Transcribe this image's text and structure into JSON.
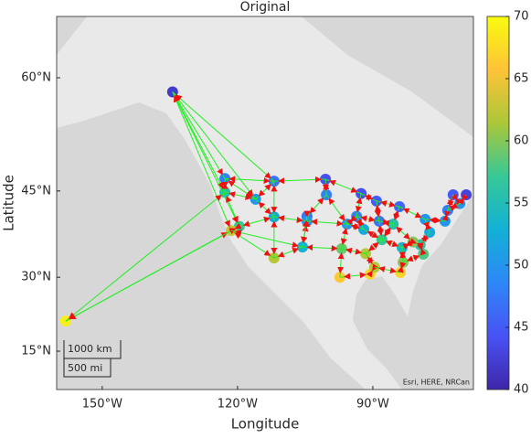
{
  "chart_data": {
    "type": "geograph",
    "title": "Original",
    "x_label": "Longitude",
    "y_label": "Latitude",
    "projection": "mercator",
    "colormap": "parula",
    "xlim": [
      -160.1,
      -67.7
    ],
    "ylim": [
      6.7,
      66.1
    ],
    "xticks": [
      {
        "value": -150,
        "label": "150°W"
      },
      {
        "value": -120,
        "label": "120°W"
      },
      {
        "value": -90,
        "label": "90°W"
      }
    ],
    "yticks": [
      {
        "value": 15,
        "label": "15°N"
      },
      {
        "value": 30,
        "label": "30°N"
      },
      {
        "value": 45,
        "label": "45°N"
      },
      {
        "value": 60,
        "label": "60°N"
      }
    ],
    "clim": [
      40,
      70
    ],
    "cticks": [
      40,
      45,
      50,
      55,
      60,
      65,
      70
    ],
    "edge_color": "#22ee22",
    "arrow_color": "#ee1111",
    "lon": [
      -134.4,
      -158.1,
      -122.8,
      -122.8,
      -116.0,
      -111.9,
      -111.9,
      -111.9,
      -119.6,
      -121.4,
      -100.5,
      -100.3,
      -104.6,
      -104.6,
      -105.6,
      -97.3,
      -96.9,
      -95.7,
      -92.6,
      -93.6,
      -91.6,
      -90.6,
      -89.6,
      -89.2,
      -88.6,
      -88.0,
      -84.1,
      -85.5,
      -83.5,
      -83.9,
      -83.3,
      -78.4,
      -77.4,
      -79.5,
      -78.8,
      -74.0,
      -73.4,
      -72.2,
      -70.7,
      -69.3,
      -81.1,
      -92.0
    ],
    "lat": [
      58.4,
      21.3,
      46.9,
      44.8,
      43.7,
      46.5,
      40.8,
      33.6,
      39.2,
      38.5,
      46.8,
      44.4,
      40.9,
      40.1,
      35.6,
      30.0,
      35.3,
      39.6,
      44.6,
      40.9,
      34.4,
      30.6,
      31.9,
      43.4,
      40.1,
      36.9,
      42.5,
      39.6,
      35.5,
      30.9,
      32.8,
      40.4,
      38.2,
      36.0,
      34.3,
      40.1,
      41.9,
      44.4,
      43.0,
      44.4,
      36.5,
      38.7
    ],
    "values": [
      42,
      69,
      48,
      55,
      50,
      47,
      52,
      62,
      57,
      63,
      44,
      48,
      47,
      50,
      53,
      66,
      59,
      50,
      44,
      48,
      62,
      67,
      62,
      45,
      47,
      57,
      46,
      55,
      54,
      67,
      60,
      50,
      52,
      56,
      58,
      50,
      48,
      45,
      50,
      43,
      60,
      52
    ],
    "edges": [
      [
        0,
        2
      ],
      [
        0,
        3
      ],
      [
        0,
        4
      ],
      [
        0,
        5
      ],
      [
        0,
        8
      ],
      [
        0,
        9
      ],
      [
        1,
        9
      ],
      [
        1,
        8
      ],
      [
        1,
        3
      ],
      [
        2,
        3
      ],
      [
        2,
        4
      ],
      [
        2,
        5
      ],
      [
        3,
        8
      ],
      [
        3,
        4
      ],
      [
        4,
        5
      ],
      [
        4,
        6
      ],
      [
        5,
        6
      ],
      [
        5,
        10
      ],
      [
        6,
        8
      ],
      [
        6,
        13
      ],
      [
        6,
        7
      ],
      [
        7,
        9
      ],
      [
        7,
        14
      ],
      [
        8,
        9
      ],
      [
        9,
        14
      ],
      [
        10,
        11
      ],
      [
        10,
        18
      ],
      [
        11,
        12
      ],
      [
        11,
        17
      ],
      [
        12,
        13
      ],
      [
        13,
        14
      ],
      [
        13,
        17
      ],
      [
        14,
        16
      ],
      [
        15,
        16
      ],
      [
        15,
        21
      ],
      [
        16,
        20
      ],
      [
        16,
        17
      ],
      [
        17,
        19
      ],
      [
        17,
        41
      ],
      [
        18,
        19
      ],
      [
        18,
        23
      ],
      [
        19,
        24
      ],
      [
        19,
        41
      ],
      [
        20,
        22
      ],
      [
        20,
        25
      ],
      [
        21,
        22
      ],
      [
        22,
        29
      ],
      [
        23,
        24
      ],
      [
        23,
        26
      ],
      [
        24,
        27
      ],
      [
        25,
        28
      ],
      [
        25,
        27
      ],
      [
        26,
        27
      ],
      [
        26,
        31
      ],
      [
        27,
        40
      ],
      [
        28,
        30
      ],
      [
        28,
        40
      ],
      [
        29,
        30
      ],
      [
        30,
        34
      ],
      [
        31,
        32
      ],
      [
        31,
        35
      ],
      [
        32,
        33
      ],
      [
        33,
        34
      ],
      [
        33,
        40
      ],
      [
        35,
        36
      ],
      [
        36,
        37
      ],
      [
        37,
        38
      ],
      [
        38,
        39
      ],
      [
        36,
        38
      ],
      [
        12,
        14
      ],
      [
        41,
        25
      ],
      [
        24,
        25
      ]
    ]
  },
  "scale_bar": {
    "km": "1000 km",
    "mi": "500 mi"
  },
  "attribution": "Esri, HERE, NRCan"
}
